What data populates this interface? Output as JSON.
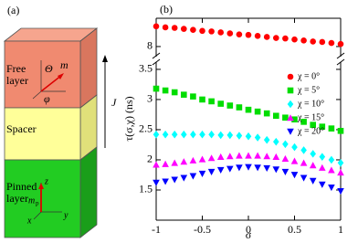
{
  "panel_a": {
    "label": "(a)",
    "free_layer": [
      "Free",
      "layer"
    ],
    "spacer": "Spacer",
    "pinned_layer": [
      "Pinned",
      "layer"
    ],
    "current": "J",
    "free_symbols": {
      "theta": "Θ",
      "m": "m",
      "phi": "φ"
    },
    "pinned_symbols": {
      "z": "z",
      "m": "m",
      "p": "p",
      "x": "x",
      "y": "y"
    }
  },
  "chart_data": {
    "type": "scatter",
    "panel_label": "(b)",
    "xlabel": "σ",
    "ylabel": "τ(σ,χ) (ns)",
    "x": [
      -1,
      -0.9,
      -0.8,
      -0.7,
      -0.6,
      -0.5,
      -0.4,
      -0.3,
      -0.2,
      -0.1,
      0,
      0.1,
      0.2,
      0.3,
      0.4,
      0.5,
      0.6,
      0.7,
      0.8,
      0.9,
      1
    ],
    "xlim": [
      -1,
      1
    ],
    "xticks": [
      -1,
      -0.5,
      0,
      0.5,
      1
    ],
    "ylim": [
      1.0,
      3.62
    ],
    "yticks": [
      1.5,
      2,
      2.5,
      3,
      3.5
    ],
    "y2lim": [
      7.8,
      8.56
    ],
    "y2ticks": [
      8
    ],
    "legend": "upper right",
    "series": [
      {
        "name": "χ = 0°",
        "color": "#ff0000",
        "marker": "circle",
        "axis": "y2",
        "values": [
          8.4,
          8.38,
          8.37,
          8.35,
          8.33,
          8.31,
          8.3,
          8.28,
          8.26,
          8.24,
          8.23,
          8.21,
          8.19,
          8.17,
          8.16,
          8.14,
          8.12,
          8.1,
          8.09,
          8.07,
          8.05
        ]
      },
      {
        "name": "χ = 5°",
        "color": "#00dd00",
        "marker": "square",
        "values": [
          3.18,
          3.15,
          3.12,
          3.08,
          3.05,
          3.0,
          2.97,
          2.93,
          2.9,
          2.87,
          2.83,
          2.8,
          2.77,
          2.73,
          2.7,
          2.67,
          2.63,
          2.58,
          2.55,
          2.52,
          2.48
        ]
      },
      {
        "name": "χ = 10°",
        "color": "#00ffff",
        "marker": "diamond",
        "values": [
          2.42,
          2.42,
          2.42,
          2.42,
          2.42,
          2.42,
          2.42,
          2.41,
          2.41,
          2.4,
          2.39,
          2.37,
          2.33,
          2.3,
          2.26,
          2.21,
          2.16,
          2.1,
          2.05,
          2.0,
          1.95
        ]
      },
      {
        "name": "χ = 15°",
        "color": "#ff00ff",
        "marker": "triangle-up",
        "values": [
          1.92,
          1.93,
          1.95,
          1.97,
          1.99,
          2.01,
          2.03,
          2.05,
          2.06,
          2.07,
          2.07,
          2.07,
          2.06,
          2.05,
          2.02,
          1.98,
          1.95,
          1.91,
          1.87,
          1.83,
          1.79
        ]
      },
      {
        "name": "χ = 20°",
        "color": "#0000ff",
        "marker": "triangle-down",
        "values": [
          1.62,
          1.64,
          1.67,
          1.7,
          1.73,
          1.77,
          1.8,
          1.83,
          1.85,
          1.87,
          1.88,
          1.87,
          1.86,
          1.84,
          1.8,
          1.75,
          1.7,
          1.65,
          1.59,
          1.54,
          1.48
        ]
      }
    ]
  }
}
